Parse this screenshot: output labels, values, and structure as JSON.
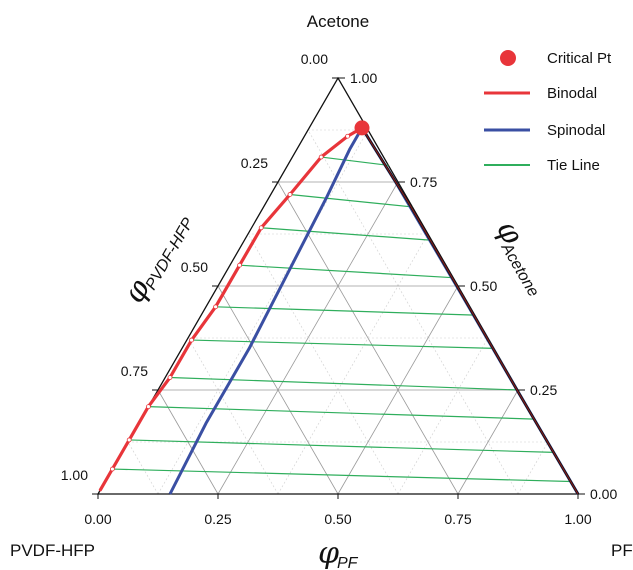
{
  "chart_data": {
    "type": "ternary",
    "vertices": {
      "top": "Acetone",
      "left": "PVDF-HFP",
      "right": "PF"
    },
    "axes": {
      "left": {
        "symbol": "φ",
        "subscript": "PVDF-HFP",
        "ticks": [
          "0.00",
          "0.25",
          "0.50",
          "0.75",
          "1.00"
        ]
      },
      "right": {
        "symbol": "φ",
        "subscript": "Acetone",
        "ticks": [
          "0.00",
          "0.25",
          "0.50",
          "0.75",
          "1.00"
        ]
      },
      "bottom": {
        "symbol": "φ",
        "subscript": "PF",
        "ticks": [
          "0.00",
          "0.25",
          "0.50",
          "0.75",
          "1.00"
        ]
      }
    },
    "grid": true,
    "legend": {
      "placement": "top-right",
      "entries": [
        {
          "label": "Critical Pt",
          "kind": "point",
          "color": "#e8353a"
        },
        {
          "label": "Binodal",
          "kind": "line",
          "color": "#e8353a"
        },
        {
          "label": "Spinodal",
          "kind": "line",
          "color": "#3a4fa3"
        },
        {
          "label": "Tie Line",
          "kind": "line",
          "color": "#2fae5c"
        }
      ]
    },
    "critical_point": {
      "pvdf_hfp": 0.01,
      "acetone": 0.88,
      "pf": 0.11
    },
    "binodal_polymer_rich": [
      {
        "pvdf_hfp": 0.99,
        "acetone": 0.01
      },
      {
        "pvdf_hfp": 0.94,
        "acetone": 0.06
      },
      {
        "pvdf_hfp": 0.87,
        "acetone": 0.13
      },
      {
        "pvdf_hfp": 0.79,
        "acetone": 0.21
      },
      {
        "pvdf_hfp": 0.71,
        "acetone": 0.28
      },
      {
        "pvdf_hfp": 0.62,
        "acetone": 0.37
      },
      {
        "pvdf_hfp": 0.53,
        "acetone": 0.45
      },
      {
        "pvdf_hfp": 0.43,
        "acetone": 0.55
      },
      {
        "pvdf_hfp": 0.34,
        "acetone": 0.64
      },
      {
        "pvdf_hfp": 0.24,
        "acetone": 0.72
      },
      {
        "pvdf_hfp": 0.13,
        "acetone": 0.81
      },
      {
        "pvdf_hfp": 0.05,
        "acetone": 0.86
      },
      {
        "pvdf_hfp": 0.01,
        "acetone": 0.88
      }
    ],
    "binodal_polymer_lean": [
      {
        "pvdf_hfp": 0.01,
        "acetone": 0.88
      },
      {
        "pvdf_hfp": 0.003,
        "acetone": 0.7
      },
      {
        "pvdf_hfp": 0.002,
        "acetone": 0.5
      },
      {
        "pvdf_hfp": 0.002,
        "acetone": 0.25
      },
      {
        "pvdf_hfp": 0.0,
        "acetone": 0.0
      }
    ],
    "binodal_markers": [
      {
        "pvdf_hfp": 0.94,
        "acetone": 0.06
      },
      {
        "pvdf_hfp": 0.87,
        "acetone": 0.13
      },
      {
        "pvdf_hfp": 0.79,
        "acetone": 0.21
      },
      {
        "pvdf_hfp": 0.71,
        "acetone": 0.28
      },
      {
        "pvdf_hfp": 0.62,
        "acetone": 0.37
      },
      {
        "pvdf_hfp": 0.53,
        "acetone": 0.45
      },
      {
        "pvdf_hfp": 0.43,
        "acetone": 0.55
      },
      {
        "pvdf_hfp": 0.34,
        "acetone": 0.64
      },
      {
        "pvdf_hfp": 0.24,
        "acetone": 0.72
      },
      {
        "pvdf_hfp": 0.13,
        "acetone": 0.81
      },
      {
        "pvdf_hfp": 0.05,
        "acetone": 0.86
      }
    ],
    "spinodal": [
      {
        "pvdf_hfp": 0.85,
        "acetone": 0.0
      },
      {
        "pvdf_hfp": 0.69,
        "acetone": 0.17
      },
      {
        "pvdf_hfp": 0.51,
        "acetone": 0.35
      },
      {
        "pvdf_hfp": 0.34,
        "acetone": 0.53
      },
      {
        "pvdf_hfp": 0.17,
        "acetone": 0.71
      },
      {
        "pvdf_hfp": 0.06,
        "acetone": 0.83
      },
      {
        "pvdf_hfp": 0.01,
        "acetone": 0.88
      },
      {
        "pvdf_hfp": 0.005,
        "acetone": 0.75
      },
      {
        "pvdf_hfp": 0.003,
        "acetone": 0.5
      },
      {
        "pvdf_hfp": 0.002,
        "acetone": 0.25
      },
      {
        "pvdf_hfp": 0.0,
        "acetone": 0.0
      }
    ],
    "tie_lines": [
      {
        "rich": {
          "pvdf_hfp": 0.94,
          "acetone": 0.06
        },
        "lean": {
          "pvdf_hfp": 0.0,
          "acetone": 0.03
        }
      },
      {
        "rich": {
          "pvdf_hfp": 0.87,
          "acetone": 0.13
        },
        "lean": {
          "pvdf_hfp": 0.0,
          "acetone": 0.1
        }
      },
      {
        "rich": {
          "pvdf_hfp": 0.79,
          "acetone": 0.21
        },
        "lean": {
          "pvdf_hfp": 0.0,
          "acetone": 0.18
        }
      },
      {
        "rich": {
          "pvdf_hfp": 0.71,
          "acetone": 0.28
        },
        "lean": {
          "pvdf_hfp": 0.0,
          "acetone": 0.25
        }
      },
      {
        "rich": {
          "pvdf_hfp": 0.62,
          "acetone": 0.37
        },
        "lean": {
          "pvdf_hfp": 0.0,
          "acetone": 0.35
        }
      },
      {
        "rich": {
          "pvdf_hfp": 0.53,
          "acetone": 0.45
        },
        "lean": {
          "pvdf_hfp": 0.0,
          "acetone": 0.43
        }
      },
      {
        "rich": {
          "pvdf_hfp": 0.43,
          "acetone": 0.55
        },
        "lean": {
          "pvdf_hfp": 0.0,
          "acetone": 0.52
        }
      },
      {
        "rich": {
          "pvdf_hfp": 0.34,
          "acetone": 0.64
        },
        "lean": {
          "pvdf_hfp": 0.0,
          "acetone": 0.61
        }
      },
      {
        "rich": {
          "pvdf_hfp": 0.24,
          "acetone": 0.72
        },
        "lean": {
          "pvdf_hfp": 0.0,
          "acetone": 0.69
        }
      },
      {
        "rich": {
          "pvdf_hfp": 0.13,
          "acetone": 0.81
        },
        "lean": {
          "pvdf_hfp": 0.0,
          "acetone": 0.79
        }
      }
    ]
  }
}
